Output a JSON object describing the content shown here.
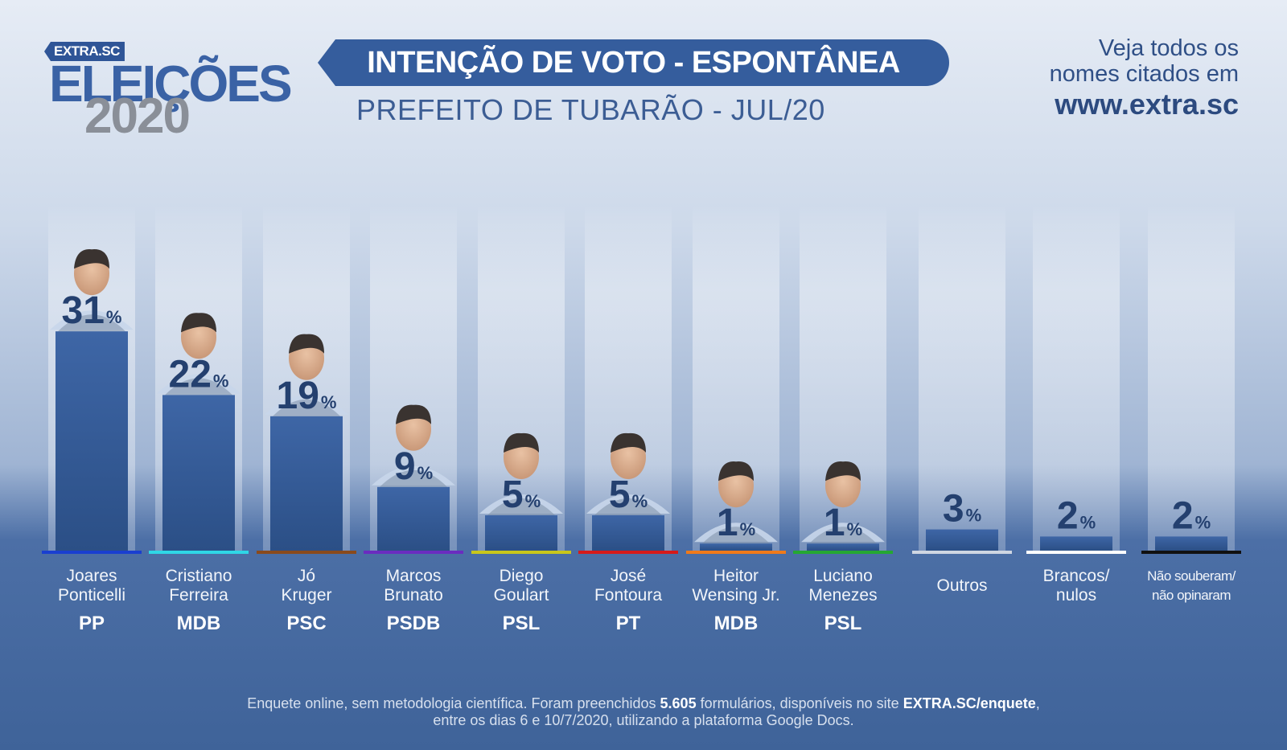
{
  "logo": {
    "brand": "EXTRA.SC",
    "word": "ELEIÇÕES",
    "year": "2020"
  },
  "header": {
    "title": "INTENÇÃO DE VOTO - ESPONTÂNEA",
    "subtitle": "PREFEITO DE TUBARÃO - JUL/20"
  },
  "cta": {
    "line1": "Veja todos os",
    "line2": "nomes citados em",
    "url": "www.extra.sc"
  },
  "chart_data": {
    "type": "bar",
    "title": "INTENÇÃO DE VOTO - ESPONTÂNEA",
    "subtitle": "PREFEITO DE TUBARÃO - JUL/20",
    "unit": "%",
    "ylim": [
      0,
      35
    ],
    "categories": [
      "Joares Ponticelli",
      "Cristiano Ferreira",
      "Jó Kruger",
      "Marcos Brunato",
      "Diego Goulart",
      "José Fontoura",
      "Heitor Wensing Jr.",
      "Luciano Menezes",
      "Outros",
      "Brancos/ nulos",
      "Não souberam/ não opinaram"
    ],
    "values": [
      31,
      22,
      19,
      9,
      5,
      5,
      1,
      1,
      3,
      2,
      2
    ],
    "candidates": [
      {
        "line1": "Joares",
        "line2": "Ponticelli",
        "party": "PP",
        "value": 31,
        "value_label": "31",
        "color": "#1a3fd0",
        "photo": true
      },
      {
        "line1": "Cristiano",
        "line2": "Ferreira",
        "party": "MDB",
        "value": 22,
        "value_label": "22",
        "color": "#2fd6e6",
        "photo": true
      },
      {
        "line1": "Jó",
        "line2": "Kruger",
        "party": "PSC",
        "value": 19,
        "value_label": "19",
        "color": "#8a4a1c",
        "photo": true
      },
      {
        "line1": "Marcos",
        "line2": "Brunato",
        "party": "PSDB",
        "value": 9,
        "value_label": "9",
        "color": "#6a2cc0",
        "photo": true
      },
      {
        "line1": "Diego",
        "line2": "Goulart",
        "party": "PSL",
        "value": 5,
        "value_label": "5",
        "color": "#c9c61a",
        "photo": true
      },
      {
        "line1": "José",
        "line2": "Fontoura",
        "party": "PT",
        "value": 5,
        "value_label": "5",
        "color": "#d61a1a",
        "photo": true
      },
      {
        "line1": "Heitor",
        "line2": "Wensing Jr.",
        "party": "MDB",
        "value": 1,
        "value_label": "1",
        "color": "#f07a1a",
        "photo": true
      },
      {
        "line1": "Luciano",
        "line2": "Menezes",
        "party": "PSL",
        "value": 1,
        "value_label": "1",
        "color": "#25a832",
        "photo": true
      },
      {
        "line1": "Outros",
        "line2": "",
        "party": "",
        "value": 3,
        "value_label": "3",
        "color": "#cfd6e2",
        "photo": false
      },
      {
        "line1": "Brancos/",
        "line2": "nulos",
        "party": "",
        "value": 2,
        "value_label": "2",
        "color": "#ffffff",
        "photo": false
      },
      {
        "line1": "Não souberam/",
        "line2": "não opinaram",
        "party": "",
        "value": 2,
        "value_label": "2",
        "color": "#111111",
        "photo": false
      }
    ],
    "percent_sign": "%"
  },
  "footnote": {
    "part1": "Enquete online, sem metodologia científica. Foram preenchidos ",
    "count": "5.605",
    "part2": " formulários, disponíveis no site ",
    "site": "EXTRA.SC/enquete",
    "part3": ",",
    "line2": "entre os dias 6 e 10/7/2020, utilizando a plataforma Google Docs."
  },
  "colors": {
    "bar": "#30578f",
    "bar_top": "#3e66a6",
    "value_text": "#24406f",
    "accent": "#355d9d"
  }
}
